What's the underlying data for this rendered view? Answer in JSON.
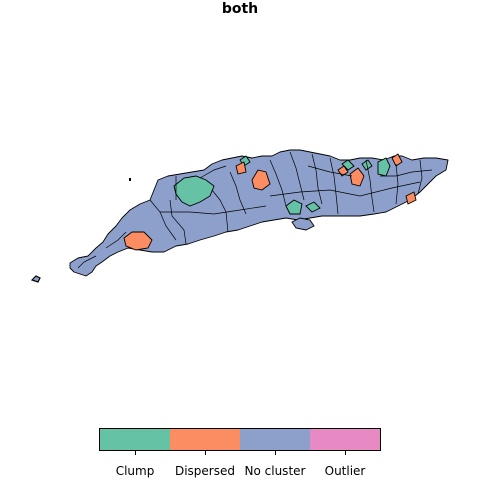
{
  "title": "both",
  "colors": {
    "clump": "#66c2a5",
    "dispersed": "#fc8d62",
    "no_cluster": "#8da0cb",
    "outlier": "#e78ac3",
    "border": "#000000"
  },
  "legend": {
    "items": [
      {
        "label": "Clump",
        "color": "#66c2a5"
      },
      {
        "label": "Dispersed",
        "color": "#fc8d62"
      },
      {
        "label": "No cluster",
        "color": "#8da0cb"
      },
      {
        "label": "Outlier",
        "color": "#e78ac3"
      }
    ]
  }
}
